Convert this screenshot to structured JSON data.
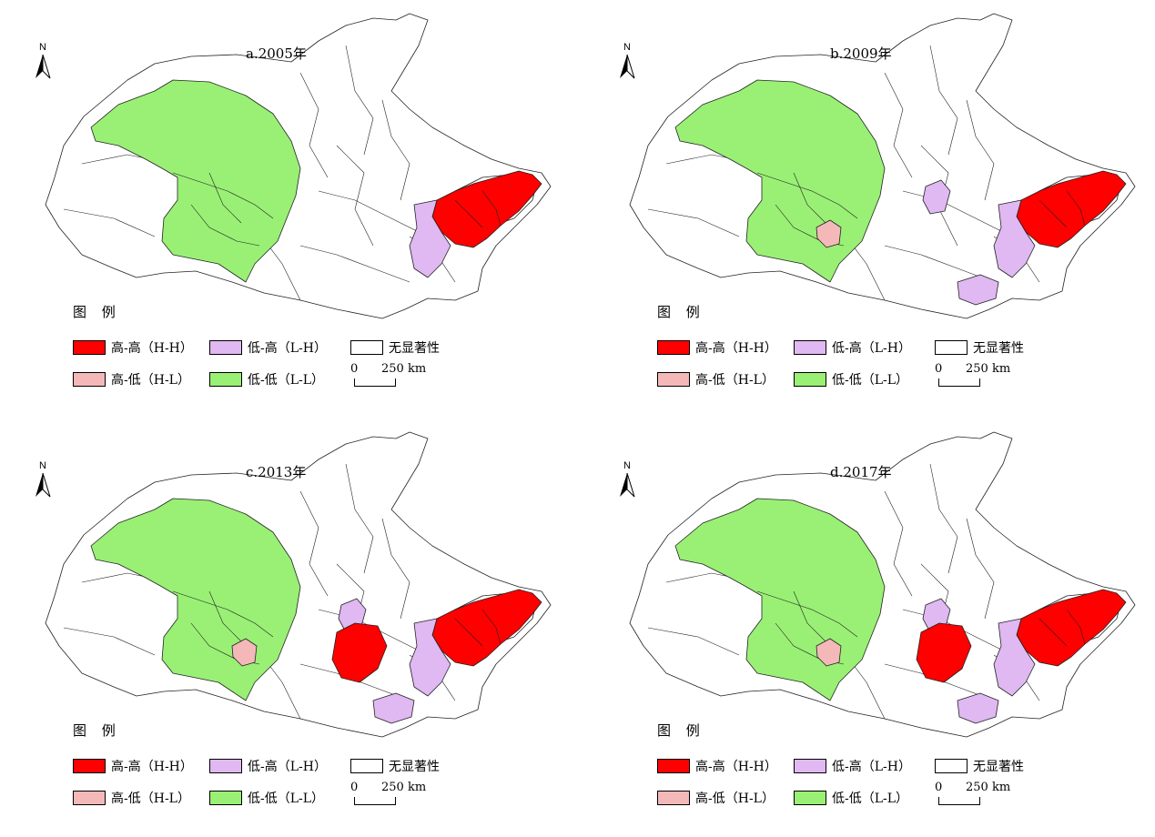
{
  "colors": {
    "hh": "#ff0000",
    "hl": "#f4b8b8",
    "lh": "#e0b8f2",
    "ll": "#99f075",
    "ns": "#ffffff",
    "stroke": "#222222"
  },
  "north_label": "N",
  "legend": {
    "title": "图 例",
    "hh": "高-高（H-H）",
    "lh": "低-高（L-H）",
    "ns": "无显著性",
    "hl": "高-低（H-L）",
    "ll": "低-低（L-L）"
  },
  "scale": {
    "zero": "0",
    "distance": "250 km"
  },
  "panels": [
    {
      "id": "a",
      "title": "a.2005年",
      "hl_patch": false,
      "lh_west": false,
      "hh_central": false,
      "lh_south": false
    },
    {
      "id": "b",
      "title": "b.2009年",
      "hl_patch": true,
      "lh_west": true,
      "hh_central": false,
      "lh_south": true
    },
    {
      "id": "c",
      "title": "c.2013年",
      "hl_patch": true,
      "lh_west": true,
      "hh_central": true,
      "lh_south": true
    },
    {
      "id": "d",
      "title": "d.2017年",
      "hl_patch": true,
      "lh_west": true,
      "hh_central": true,
      "lh_south": true
    }
  ]
}
